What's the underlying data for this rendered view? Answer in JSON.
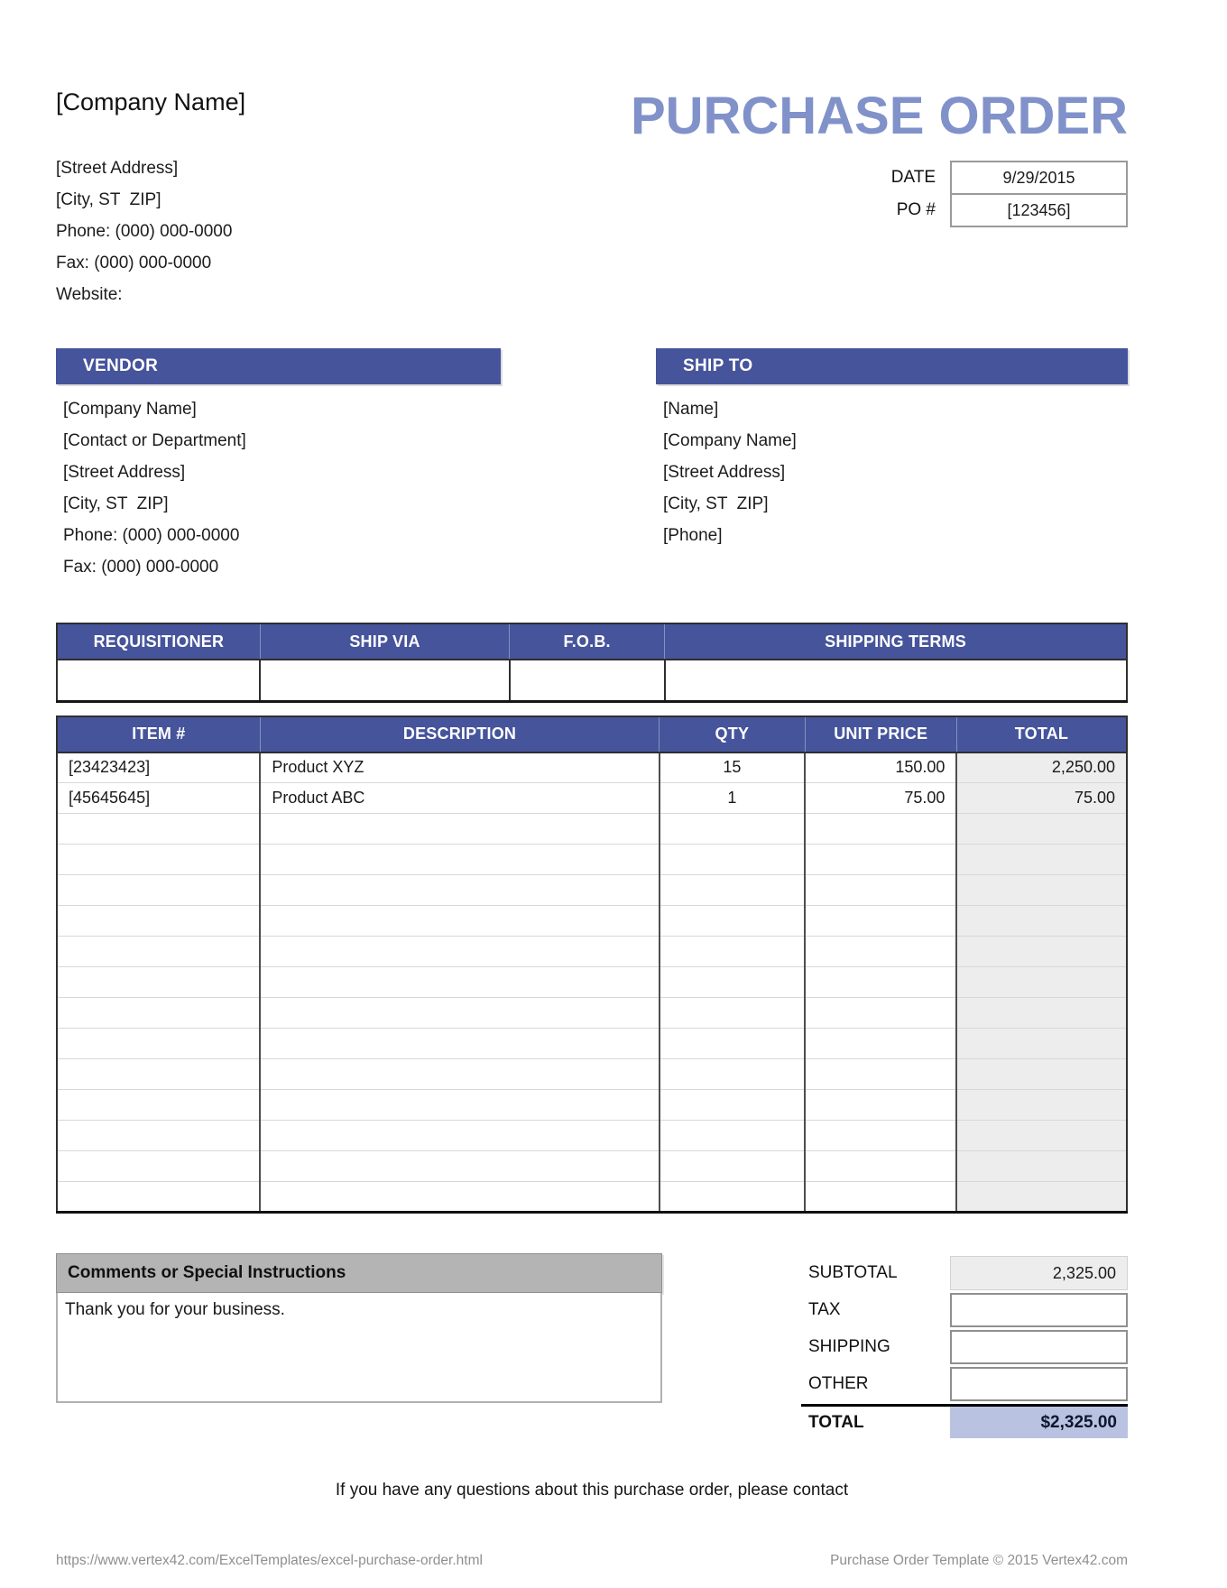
{
  "page": {
    "title": "PURCHASE ORDER",
    "footer_contact": "If you have any questions about this purchase order, please contact",
    "footer_url": "https://www.vertex42.com/ExcelTemplates/excel-purchase-order.html",
    "footer_copyright": "Purchase Order Template © 2015 Vertex42.com"
  },
  "company": {
    "name": "[Company Name]",
    "lines": [
      "[Street Address]",
      "[City, ST  ZIP]",
      "Phone: (000) 000-0000",
      "Fax: (000) 000-0000",
      "Website:"
    ]
  },
  "order_meta": {
    "date_label": "DATE",
    "date_value": "9/29/2015",
    "po_label": "PO #",
    "po_value": "[123456]"
  },
  "vendor": {
    "header": "VENDOR",
    "lines": [
      "[Company Name]",
      "[Contact or Department]",
      "[Street Address]",
      "[City, ST  ZIP]",
      "Phone: (000) 000-0000",
      "Fax: (000) 000-0000"
    ]
  },
  "ship_to": {
    "header": "SHIP TO",
    "lines": [
      "[Name]",
      "[Company Name]",
      "[Street Address]",
      "[City, ST  ZIP]",
      "[Phone]"
    ]
  },
  "shipping_table": {
    "headers": [
      "REQUISITIONER",
      "SHIP VIA",
      "F.O.B.",
      "SHIPPING TERMS"
    ],
    "values": [
      "",
      "",
      "",
      ""
    ]
  },
  "items_table": {
    "headers": [
      "ITEM #",
      "DESCRIPTION",
      "QTY",
      "UNIT PRICE",
      "TOTAL"
    ],
    "columns": [
      "item",
      "description",
      "qty",
      "unit_price",
      "total"
    ],
    "rows": [
      {
        "item": "[23423423]",
        "description": "Product XYZ",
        "qty": "15",
        "unit_price": "150.00",
        "total": "2,250.00"
      },
      {
        "item": "[45645645]",
        "description": "Product ABC",
        "qty": "1",
        "unit_price": "75.00",
        "total": "75.00"
      }
    ],
    "empty_row_count": 13
  },
  "totals": {
    "subtotal_label": "SUBTOTAL",
    "subtotal_value": "2,325.00",
    "tax_label": "TAX",
    "tax_value": "",
    "shipping_label": "SHIPPING",
    "shipping_value": "",
    "other_label": "OTHER",
    "other_value": "",
    "total_label": "TOTAL",
    "total_value": "$2,325.00"
  },
  "comments": {
    "header": "Comments or Special Instructions",
    "body": "Thank you for your business."
  },
  "colors": {
    "section_header_blue": "#46549B",
    "title_blue": "#8191C9",
    "total_highlight_blue": "#B9C3E1",
    "subtotal_cell_gray": "#EDEDEE",
    "comments_header_gray": "#B4B4B4"
  }
}
